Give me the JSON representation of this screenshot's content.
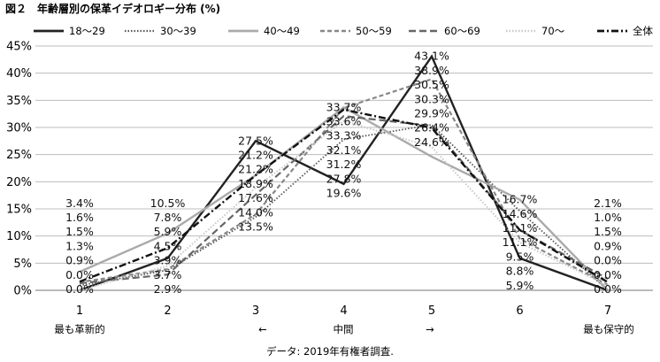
{
  "figure_title": "図２　年齢層別の保革イデオロギー分布 (%)",
  "source_note": "データ: 2019年有権者調査.",
  "axis_under_labels": {
    "left": "最も革新的",
    "left_arrow": "←",
    "middle": "中間",
    "right_arrow": "→",
    "right": "最も保守的"
  },
  "chart_data": {
    "type": "line",
    "x": [
      1,
      2,
      3,
      4,
      5,
      6,
      7
    ],
    "x_tick_labels": [
      "1",
      "2",
      "3",
      "4",
      "5",
      "6",
      "7"
    ],
    "ylim": [
      0,
      45
    ],
    "y_ticks": [
      0,
      5,
      10,
      15,
      20,
      25,
      30,
      35,
      40,
      45
    ],
    "y_tick_labels": [
      "0%",
      "5%",
      "10%",
      "15%",
      "20%",
      "25%",
      "30%",
      "35%",
      "40%",
      "45%"
    ],
    "grid": "horizontal",
    "legend_position": "top",
    "series": [
      {
        "name": "18〜29",
        "color": "#222222",
        "dash": "solid",
        "width": 2.4,
        "values": [
          0.0,
          5.9,
          27.5,
          19.6,
          43.1,
          5.9,
          0.0
        ]
      },
      {
        "name": "30〜39",
        "color": "#555555",
        "dash": "dotted",
        "width": 1.8,
        "values": [
          0.9,
          3.7,
          13.5,
          27.8,
          30.5,
          14.6,
          0.0
        ]
      },
      {
        "name": "40〜49",
        "color": "#aaaaaa",
        "dash": "solid",
        "width": 2.4,
        "values": [
          3.4,
          10.5,
          21.2,
          33.7,
          24.6,
          16.7,
          0.0
        ]
      },
      {
        "name": "50〜59",
        "color": "#888888",
        "dash": "dashed",
        "width": 2.2,
        "values": [
          1.5,
          3.9,
          14.0,
          33.6,
          38.9,
          9.5,
          1.0
        ]
      },
      {
        "name": "60〜69",
        "color": "#666666",
        "dash": "longdash",
        "width": 2.2,
        "values": [
          1.3,
          2.9,
          17.6,
          32.1,
          30.3,
          11.1,
          2.1
        ]
      },
      {
        "name": "70〜",
        "color": "#c8c8c8",
        "dash": "dotted",
        "width": 2.0,
        "values": [
          0.0,
          4.5,
          18.9,
          31.2,
          26.4,
          8.8,
          0.9
        ]
      },
      {
        "name": "全体",
        "color": "#111111",
        "dash": "dashdot",
        "width": 2.4,
        "values": [
          1.6,
          7.8,
          21.2,
          33.3,
          29.9,
          11.1,
          1.5
        ]
      }
    ],
    "data_labels": [
      {
        "x": 1,
        "labels": [
          "3.4%",
          "1.6%",
          "1.5%",
          "1.3%",
          "0.9%",
          "0.0%",
          "0.0%"
        ]
      },
      {
        "x": 2,
        "labels": [
          "10.5%",
          "7.8%",
          "5.9%",
          "4.5%",
          "3.9%",
          "3.7%",
          "2.9%"
        ]
      },
      {
        "x": 3,
        "labels": [
          "27.5%",
          "21.2%",
          "21.2%",
          "18.9%",
          "17.6%",
          "14.0%",
          "13.5%"
        ]
      },
      {
        "x": 4,
        "labels": [
          "33.7%",
          "33.6%",
          "33.3%",
          "32.1%",
          "31.2%",
          "27.8%",
          "19.6%"
        ]
      },
      {
        "x": 5,
        "labels": [
          "43.1%",
          "38.9%",
          "30.5%",
          "30.3%",
          "29.9%",
          "26.4%",
          "24.6%"
        ]
      },
      {
        "x": 6,
        "labels": [
          "16.7%",
          "14.6%",
          "11.1%",
          "11.1%",
          "9.5%",
          "8.8%",
          "5.9%"
        ]
      },
      {
        "x": 7,
        "labels": [
          "2.1%",
          "1.0%",
          "1.5%",
          "0.9%",
          "0.0%",
          "0.0%",
          "0.0%"
        ]
      }
    ]
  }
}
